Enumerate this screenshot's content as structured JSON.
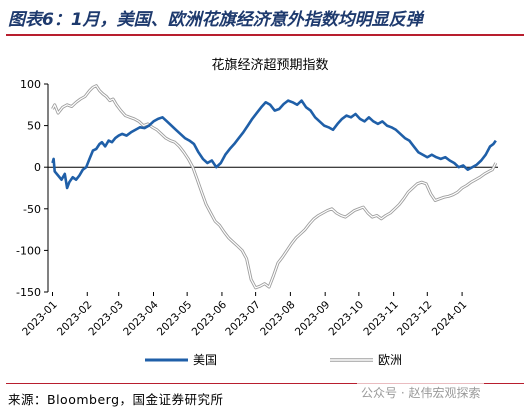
{
  "figure_title": "图表6：1月，美国、欧洲花旗经济意外指数均明显反弹",
  "source": "来源：Bloomberg，国金证券研究所",
  "watermark": "公众号 · 赵伟宏观探索",
  "colors": {
    "us": "#1f5fa8",
    "eu": "#b5b5b5",
    "accent": "#b81e2e",
    "title": "#1e3a6e"
  },
  "chart_data": {
    "type": "line",
    "title": "花旗经济超预期指数",
    "xlabel": "",
    "ylabel": "",
    "ylim": [
      -150,
      100
    ],
    "yticks": [
      -150,
      -100,
      -50,
      0,
      50,
      100
    ],
    "xlim": [
      "2022-12-28",
      "2024-02-02"
    ],
    "x_tick_labels": [
      "2023-01",
      "2023-02",
      "2023-03",
      "2023-04",
      "2023-05",
      "2023-06",
      "2023-07",
      "2023-08",
      "2023-09",
      "2023-10",
      "2023-11",
      "2023-12",
      "2024-01"
    ],
    "x_tick_dates": [
      "2023-01-01",
      "2023-02-01",
      "2023-03-01",
      "2023-04-01",
      "2023-05-01",
      "2023-06-01",
      "2023-07-01",
      "2023-08-01",
      "2023-09-01",
      "2023-10-01",
      "2023-11-01",
      "2023-12-01",
      "2024-01-01"
    ],
    "legend_position": "bottom",
    "grid": false,
    "series": [
      {
        "name": "美国",
        "key": "us",
        "points": [
          [
            "2023-01-01",
            5
          ],
          [
            "2023-01-02",
            10
          ],
          [
            "2023-01-03",
            -5
          ],
          [
            "2023-01-06",
            -10
          ],
          [
            "2023-01-09",
            -15
          ],
          [
            "2023-01-12",
            -8
          ],
          [
            "2023-01-14",
            -25
          ],
          [
            "2023-01-16",
            -18
          ],
          [
            "2023-01-19",
            -12
          ],
          [
            "2023-01-22",
            -15
          ],
          [
            "2023-01-25",
            -10
          ],
          [
            "2023-01-28",
            -3
          ],
          [
            "2023-01-31",
            0
          ],
          [
            "2023-02-03",
            10
          ],
          [
            "2023-02-06",
            20
          ],
          [
            "2023-02-09",
            22
          ],
          [
            "2023-02-12",
            28
          ],
          [
            "2023-02-14",
            30
          ],
          [
            "2023-02-17",
            25
          ],
          [
            "2023-02-20",
            32
          ],
          [
            "2023-02-23",
            30
          ],
          [
            "2023-02-26",
            35
          ],
          [
            "2023-03-01",
            38
          ],
          [
            "2023-03-04",
            40
          ],
          [
            "2023-03-08",
            38
          ],
          [
            "2023-03-12",
            42
          ],
          [
            "2023-03-16",
            45
          ],
          [
            "2023-03-20",
            48
          ],
          [
            "2023-03-24",
            47
          ],
          [
            "2023-03-28",
            50
          ],
          [
            "2023-04-01",
            55
          ],
          [
            "2023-04-05",
            58
          ],
          [
            "2023-04-09",
            60
          ],
          [
            "2023-04-13",
            55
          ],
          [
            "2023-04-17",
            50
          ],
          [
            "2023-04-21",
            45
          ],
          [
            "2023-04-25",
            40
          ],
          [
            "2023-04-29",
            35
          ],
          [
            "2023-05-03",
            32
          ],
          [
            "2023-05-07",
            28
          ],
          [
            "2023-05-11",
            18
          ],
          [
            "2023-05-15",
            10
          ],
          [
            "2023-05-19",
            5
          ],
          [
            "2023-05-23",
            8
          ],
          [
            "2023-05-27",
            0
          ],
          [
            "2023-05-31",
            5
          ],
          [
            "2023-06-04",
            15
          ],
          [
            "2023-06-08",
            22
          ],
          [
            "2023-06-12",
            28
          ],
          [
            "2023-06-16",
            35
          ],
          [
            "2023-06-20",
            42
          ],
          [
            "2023-06-24",
            50
          ],
          [
            "2023-06-28",
            58
          ],
          [
            "2023-07-02",
            65
          ],
          [
            "2023-07-06",
            72
          ],
          [
            "2023-07-10",
            78
          ],
          [
            "2023-07-14",
            75
          ],
          [
            "2023-07-18",
            68
          ],
          [
            "2023-07-22",
            70
          ],
          [
            "2023-07-26",
            76
          ],
          [
            "2023-07-30",
            80
          ],
          [
            "2023-08-03",
            78
          ],
          [
            "2023-08-07",
            75
          ],
          [
            "2023-08-11",
            80
          ],
          [
            "2023-08-15",
            72
          ],
          [
            "2023-08-19",
            68
          ],
          [
            "2023-08-23",
            60
          ],
          [
            "2023-08-27",
            55
          ],
          [
            "2023-08-31",
            50
          ],
          [
            "2023-09-04",
            48
          ],
          [
            "2023-09-08",
            45
          ],
          [
            "2023-09-12",
            52
          ],
          [
            "2023-09-16",
            58
          ],
          [
            "2023-09-20",
            62
          ],
          [
            "2023-09-24",
            60
          ],
          [
            "2023-09-28",
            64
          ],
          [
            "2023-10-02",
            58
          ],
          [
            "2023-10-06",
            55
          ],
          [
            "2023-10-10",
            60
          ],
          [
            "2023-10-14",
            55
          ],
          [
            "2023-10-18",
            52
          ],
          [
            "2023-10-22",
            55
          ],
          [
            "2023-10-26",
            50
          ],
          [
            "2023-10-30",
            48
          ],
          [
            "2023-11-03",
            45
          ],
          [
            "2023-11-07",
            40
          ],
          [
            "2023-11-11",
            35
          ],
          [
            "2023-11-15",
            32
          ],
          [
            "2023-11-19",
            25
          ],
          [
            "2023-11-23",
            18
          ],
          [
            "2023-11-27",
            15
          ],
          [
            "2023-12-01",
            12
          ],
          [
            "2023-12-05",
            15
          ],
          [
            "2023-12-09",
            12
          ],
          [
            "2023-12-13",
            10
          ],
          [
            "2023-12-17",
            12
          ],
          [
            "2023-12-21",
            8
          ],
          [
            "2023-12-25",
            5
          ],
          [
            "2023-12-29",
            0
          ],
          [
            "2024-01-02",
            2
          ],
          [
            "2024-01-06",
            -3
          ],
          [
            "2024-01-10",
            0
          ],
          [
            "2024-01-14",
            3
          ],
          [
            "2024-01-18",
            8
          ],
          [
            "2024-01-22",
            15
          ],
          [
            "2024-01-26",
            25
          ],
          [
            "2024-01-29",
            28
          ],
          [
            "2024-01-31",
            32
          ]
        ]
      },
      {
        "name": "欧洲",
        "key": "eu",
        "points": [
          [
            "2023-01-01",
            70
          ],
          [
            "2023-01-03",
            75
          ],
          [
            "2023-01-06",
            65
          ],
          [
            "2023-01-10",
            72
          ],
          [
            "2023-01-14",
            75
          ],
          [
            "2023-01-18",
            73
          ],
          [
            "2023-01-22",
            78
          ],
          [
            "2023-01-26",
            82
          ],
          [
            "2023-01-30",
            85
          ],
          [
            "2023-02-03",
            92
          ],
          [
            "2023-02-06",
            96
          ],
          [
            "2023-02-09",
            98
          ],
          [
            "2023-02-12",
            92
          ],
          [
            "2023-02-15",
            88
          ],
          [
            "2023-02-18",
            85
          ],
          [
            "2023-02-21",
            80
          ],
          [
            "2023-02-24",
            82
          ],
          [
            "2023-02-27",
            75
          ],
          [
            "2023-03-03",
            68
          ],
          [
            "2023-03-07",
            62
          ],
          [
            "2023-03-11",
            60
          ],
          [
            "2023-03-15",
            58
          ],
          [
            "2023-03-19",
            55
          ],
          [
            "2023-03-23",
            50
          ],
          [
            "2023-03-27",
            52
          ],
          [
            "2023-03-31",
            48
          ],
          [
            "2023-04-04",
            45
          ],
          [
            "2023-04-08",
            40
          ],
          [
            "2023-04-12",
            35
          ],
          [
            "2023-04-16",
            32
          ],
          [
            "2023-04-20",
            30
          ],
          [
            "2023-04-24",
            25
          ],
          [
            "2023-04-28",
            18
          ],
          [
            "2023-05-02",
            10
          ],
          [
            "2023-05-06",
            0
          ],
          [
            "2023-05-10",
            -15
          ],
          [
            "2023-05-14",
            -30
          ],
          [
            "2023-05-18",
            -45
          ],
          [
            "2023-05-22",
            -55
          ],
          [
            "2023-05-26",
            -65
          ],
          [
            "2023-05-30",
            -70
          ],
          [
            "2023-06-03",
            -78
          ],
          [
            "2023-06-07",
            -85
          ],
          [
            "2023-06-11",
            -90
          ],
          [
            "2023-06-15",
            -95
          ],
          [
            "2023-06-19",
            -100
          ],
          [
            "2023-06-23",
            -110
          ],
          [
            "2023-06-27",
            -135
          ],
          [
            "2023-07-01",
            -145
          ],
          [
            "2023-07-05",
            -143
          ],
          [
            "2023-07-09",
            -140
          ],
          [
            "2023-07-13",
            -144
          ],
          [
            "2023-07-17",
            -130
          ],
          [
            "2023-07-21",
            -115
          ],
          [
            "2023-07-25",
            -108
          ],
          [
            "2023-07-29",
            -100
          ],
          [
            "2023-08-02",
            -92
          ],
          [
            "2023-08-06",
            -85
          ],
          [
            "2023-08-10",
            -80
          ],
          [
            "2023-08-14",
            -75
          ],
          [
            "2023-08-18",
            -68
          ],
          [
            "2023-08-22",
            -62
          ],
          [
            "2023-08-26",
            -58
          ],
          [
            "2023-08-30",
            -55
          ],
          [
            "2023-09-03",
            -52
          ],
          [
            "2023-09-07",
            -50
          ],
          [
            "2023-09-11",
            -55
          ],
          [
            "2023-09-15",
            -58
          ],
          [
            "2023-09-19",
            -60
          ],
          [
            "2023-09-23",
            -56
          ],
          [
            "2023-09-27",
            -52
          ],
          [
            "2023-10-01",
            -50
          ],
          [
            "2023-10-05",
            -48
          ],
          [
            "2023-10-09",
            -55
          ],
          [
            "2023-10-13",
            -60
          ],
          [
            "2023-10-17",
            -58
          ],
          [
            "2023-10-21",
            -62
          ],
          [
            "2023-10-25",
            -58
          ],
          [
            "2023-10-29",
            -55
          ],
          [
            "2023-11-02",
            -50
          ],
          [
            "2023-11-06",
            -45
          ],
          [
            "2023-11-10",
            -38
          ],
          [
            "2023-11-14",
            -30
          ],
          [
            "2023-11-18",
            -25
          ],
          [
            "2023-11-22",
            -20
          ],
          [
            "2023-11-26",
            -18
          ],
          [
            "2023-11-30",
            -20
          ],
          [
            "2023-12-04",
            -32
          ],
          [
            "2023-12-08",
            -40
          ],
          [
            "2023-12-12",
            -38
          ],
          [
            "2023-12-16",
            -36
          ],
          [
            "2023-12-20",
            -35
          ],
          [
            "2023-12-24",
            -33
          ],
          [
            "2023-12-28",
            -30
          ],
          [
            "2024-01-01",
            -25
          ],
          [
            "2024-01-05",
            -22
          ],
          [
            "2024-01-09",
            -18
          ],
          [
            "2024-01-13",
            -15
          ],
          [
            "2024-01-17",
            -12
          ],
          [
            "2024-01-21",
            -8
          ],
          [
            "2024-01-25",
            -5
          ],
          [
            "2024-01-28",
            -3
          ],
          [
            "2024-01-31",
            5
          ]
        ]
      }
    ]
  }
}
